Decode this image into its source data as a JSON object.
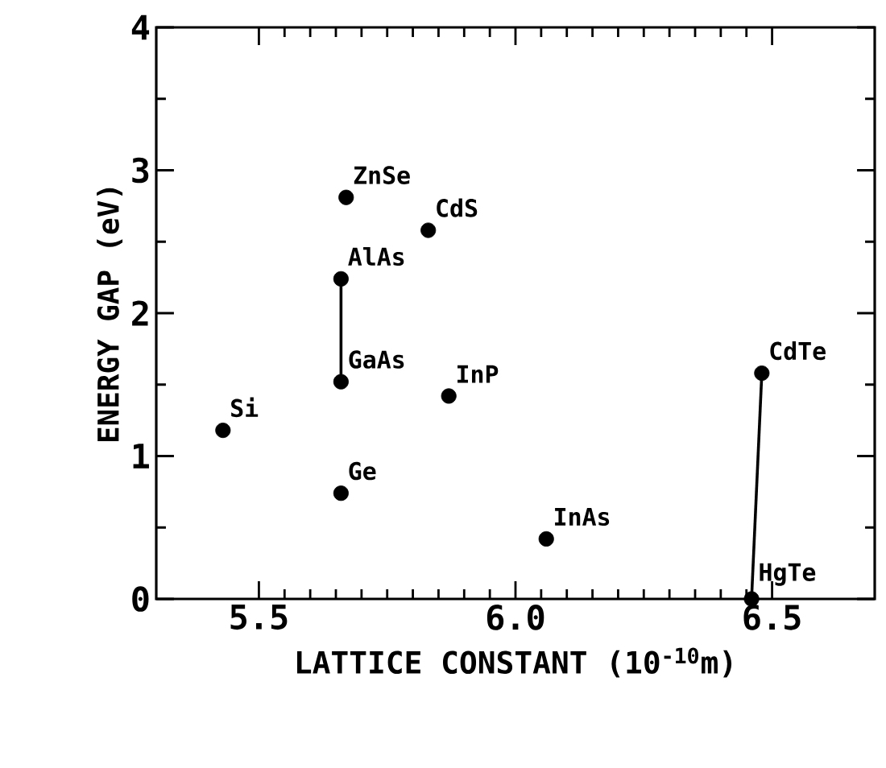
{
  "chart_data": {
    "type": "scatter",
    "xlabel": "LATTICE CONSTANT (10$^{-10}$m)",
    "ylabel": "ENERGY GAP (eV)",
    "xlim": [
      5.3,
      6.7
    ],
    "ylim": [
      0,
      4
    ],
    "xticks": [
      5.5,
      {
        "value": 6,
        "label": "6.0"
      },
      6.5
    ],
    "yticks": [
      0,
      1,
      2,
      3,
      4
    ],
    "marker": "circle",
    "series": [
      {
        "color": "#000000",
        "x": [
          5.43,
          5.67,
          5.83,
          5.66,
          5.66,
          5.87,
          5.66,
          6.06,
          6.48,
          6.46
        ],
        "values": [
          1.18,
          2.81,
          2.58,
          2.24,
          1.52,
          1.42,
          0.74,
          0.42,
          1.58,
          0.0
        ]
      },
      {
        "type": "line",
        "marker": "none",
        "line_style": "solid",
        "color": "#000000",
        "x": [
          5.66,
          5.66
        ],
        "values": [
          2.24,
          1.52
        ]
      },
      {
        "type": "line",
        "marker": "none",
        "line_style": "solid",
        "color": "#000000",
        "x": [
          6.46,
          6.48
        ],
        "values": [
          0.0,
          1.58
        ]
      }
    ],
    "annotations": [
      {
        "text": "Si",
        "x": 5.43,
        "y": 1.18
      },
      {
        "text": "ZnSe",
        "x": 5.67,
        "y": 2.81
      },
      {
        "text": "CdS",
        "x": 5.83,
        "y": 2.58
      },
      {
        "text": "AlAs",
        "x": 5.66,
        "y": 2.24
      },
      {
        "text": "GaAs",
        "x": 5.66,
        "y": 1.52
      },
      {
        "text": "InP",
        "x": 5.87,
        "y": 1.42
      },
      {
        "text": "Ge",
        "x": 5.66,
        "y": 0.74
      },
      {
        "text": "InAs",
        "x": 6.06,
        "y": 0.42
      },
      {
        "text": "CdTe",
        "x": 6.48,
        "y": 1.58
      },
      {
        "text": "HgTe",
        "x": 6.46,
        "y": 0.0
      }
    ]
  }
}
